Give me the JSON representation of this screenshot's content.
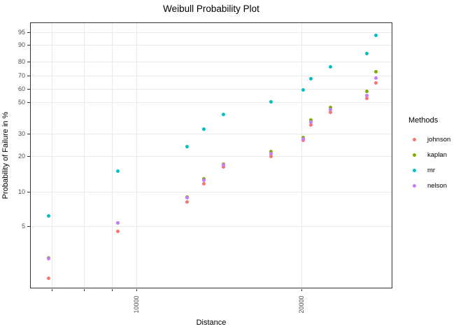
{
  "title": "Weibull Probability Plot",
  "axes": {
    "x": {
      "label": "Distance",
      "scale": "log10",
      "domain": [
        6390,
        29260
      ],
      "ticks": [
        {
          "value": 7000,
          "label": ""
        },
        {
          "value": 8000,
          "label": ""
        },
        {
          "value": 9000,
          "label": ""
        },
        {
          "value": 10000,
          "label": "10000"
        },
        {
          "value": 20000,
          "label": "20000"
        }
      ]
    },
    "y": {
      "label": "Probability of Failure in %",
      "scale": "weibull",
      "domain_pct": [
        1.37,
        97.5
      ],
      "ticks": [
        {
          "value": 5,
          "label": "5"
        },
        {
          "value": 10,
          "label": "10"
        },
        {
          "value": 20,
          "label": "20"
        },
        {
          "value": 30,
          "label": "30"
        },
        {
          "value": 50,
          "label": "50"
        },
        {
          "value": 60,
          "label": "60"
        },
        {
          "value": 70,
          "label": "70"
        },
        {
          "value": 80,
          "label": "80"
        },
        {
          "value": 90,
          "label": "90"
        },
        {
          "value": 95,
          "label": "95"
        }
      ]
    }
  },
  "legend": {
    "title": "Methods",
    "position": "right",
    "items": [
      {
        "label": "johnson",
        "color": "#F8766D"
      },
      {
        "label": "kaplan",
        "color": "#7CAE00"
      },
      {
        "label": "mr",
        "color": "#00BFC4"
      },
      {
        "label": "nelson",
        "color": "#C77CFF"
      }
    ]
  },
  "chart_data": {
    "type": "scatter",
    "title": "Weibull Probability Plot",
    "xlabel": "Distance",
    "ylabel": "Probability of Failure in %",
    "x_scale": "log10",
    "y_scale": "weibull-probability",
    "grid": true,
    "legend_position": "right",
    "x_domain": [
      6390,
      29260
    ],
    "y_domain_pct": [
      1.37,
      97.5
    ],
    "x": [
      6900,
      9250,
      12350,
      13250,
      14400,
      17600,
      20100,
      20800,
      22550,
      26300,
      27300
    ],
    "series": [
      {
        "name": "johnson",
        "color": "#F8766D",
        "values": [
          1.7,
          4.5,
          8.1,
          11.7,
          16.2,
          19.8,
          26.5,
          34.8,
          42.9,
          52.5,
          64.5
        ]
      },
      {
        "name": "kaplan",
        "color": "#7CAE00",
        "values": [
          2.6,
          5.3,
          9.0,
          12.9,
          17.2,
          21.6,
          28.1,
          37.6,
          46.1,
          58.0,
          73.0
        ]
      },
      {
        "name": "mr",
        "color": "#00BFC4",
        "values": [
          6.1,
          14.9,
          23.7,
          32.5,
          41.2,
          50.0,
          58.8,
          67.5,
          76.3,
          85.1,
          93.9
        ]
      },
      {
        "name": "nelson",
        "color": "#C77CFF",
        "values": [
          2.55,
          5.3,
          8.85,
          12.5,
          16.8,
          21.0,
          27.4,
          36.6,
          44.8,
          55.0,
          68.4
        ]
      }
    ]
  },
  "colors": {
    "background": "#ffffff",
    "panel_border": "#333333",
    "gridline": "#ebebeb",
    "tick": "#333333",
    "tick_label": "#4d4d4d",
    "title_text": "#000000"
  }
}
